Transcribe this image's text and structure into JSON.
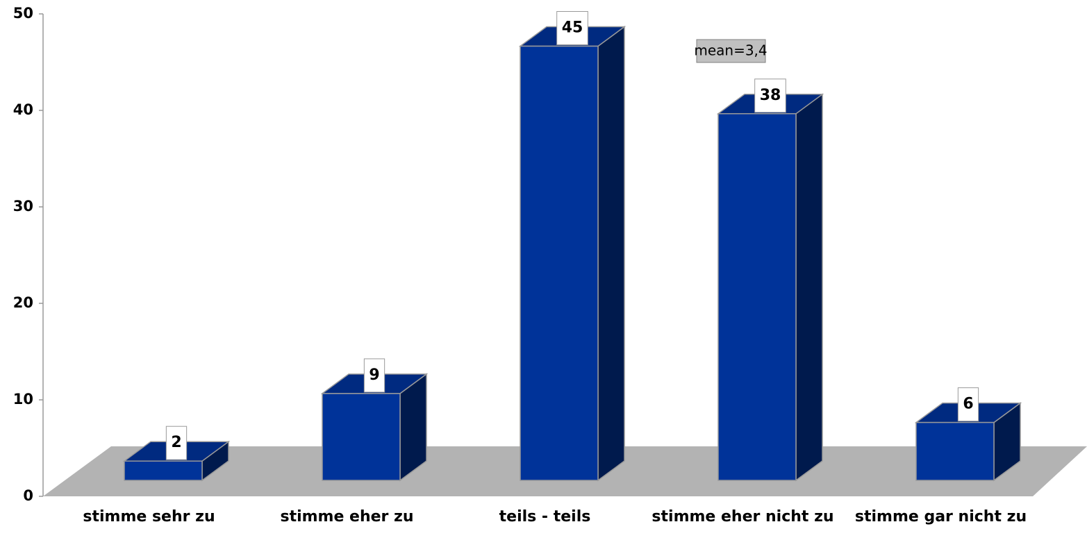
{
  "chart_data": {
    "type": "bar3d",
    "categories": [
      "stimme sehr zu",
      "stimme eher zu",
      "teils - teils",
      "stimme eher nicht zu",
      "stimme gar nicht zu"
    ],
    "values": [
      2,
      9,
      45,
      38,
      6
    ],
    "color": "#003399",
    "ylim": [
      0,
      50
    ],
    "yticks": [
      0,
      10,
      20,
      30,
      40,
      50
    ],
    "annotation": "mean=3,4"
  }
}
